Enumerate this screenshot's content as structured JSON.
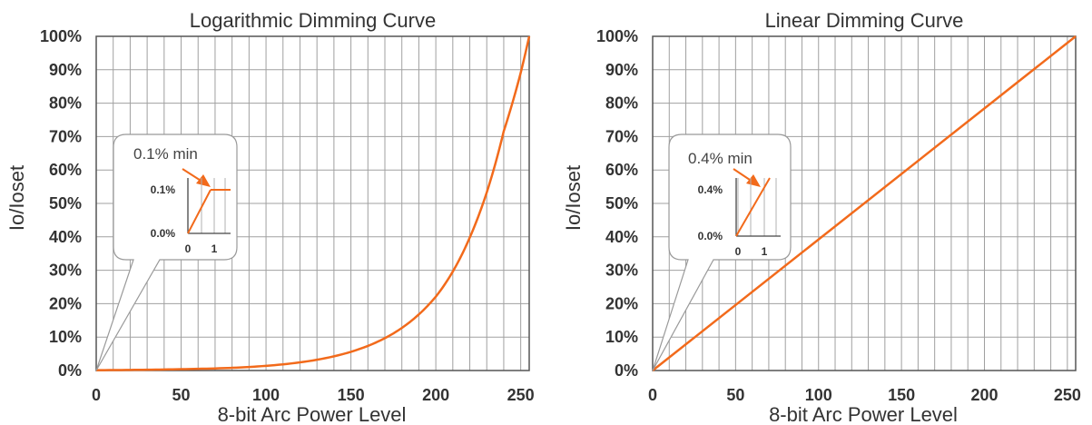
{
  "chart_data": [
    {
      "type": "line",
      "title": "Logarithmic Dimming Curve",
      "xlabel": "8-bit Arc Power Level",
      "ylabel": "Io/Ioset",
      "xlim": [
        0,
        255
      ],
      "ylim": [
        0,
        100
      ],
      "x_ticks": [
        "0",
        "50",
        "100",
        "150",
        "200",
        "250"
      ],
      "y_ticks": [
        "0%",
        "10%",
        "20%",
        "30%",
        "40%",
        "50%",
        "60%",
        "70%",
        "80%",
        "90%",
        "100%"
      ],
      "grid": true,
      "line_color": "#f26a1b",
      "series": [
        {
          "x": [
            0,
            25,
            50,
            75,
            100,
            125,
            150,
            175,
            200,
            210,
            220,
            230,
            240,
            250,
            255
          ],
          "y": [
            0.1,
            0.2,
            0.4,
            0.7,
            1.4,
            2.8,
            5.6,
            11.1,
            22.1,
            29.6,
            39.8,
            53.3,
            71.6,
            89.1,
            100
          ]
        }
      ],
      "callout": {
        "label": "0.1% min",
        "y_ticks": [
          "0.0%",
          "0.1%"
        ],
        "x_ticks": [
          "0",
          "1"
        ]
      }
    },
    {
      "type": "line",
      "title": "Linear Dimming Curve",
      "xlabel": "8-bit Arc Power Level",
      "ylabel": "Io/Ioset",
      "xlim": [
        0,
        255
      ],
      "ylim": [
        0,
        100
      ],
      "x_ticks": [
        "0",
        "50",
        "100",
        "150",
        "200",
        "250"
      ],
      "y_ticks": [
        "0%",
        "10%",
        "20%",
        "30%",
        "40%",
        "50%",
        "60%",
        "70%",
        "80%",
        "90%",
        "100%"
      ],
      "grid": true,
      "line_color": "#f26a1b",
      "series": [
        {
          "x": [
            0,
            255
          ],
          "y": [
            0,
            100
          ]
        }
      ],
      "callout": {
        "label": "0.4% min",
        "y_ticks": [
          "0.0%",
          "0.4%"
        ],
        "x_ticks": [
          "0",
          "1"
        ]
      }
    }
  ]
}
